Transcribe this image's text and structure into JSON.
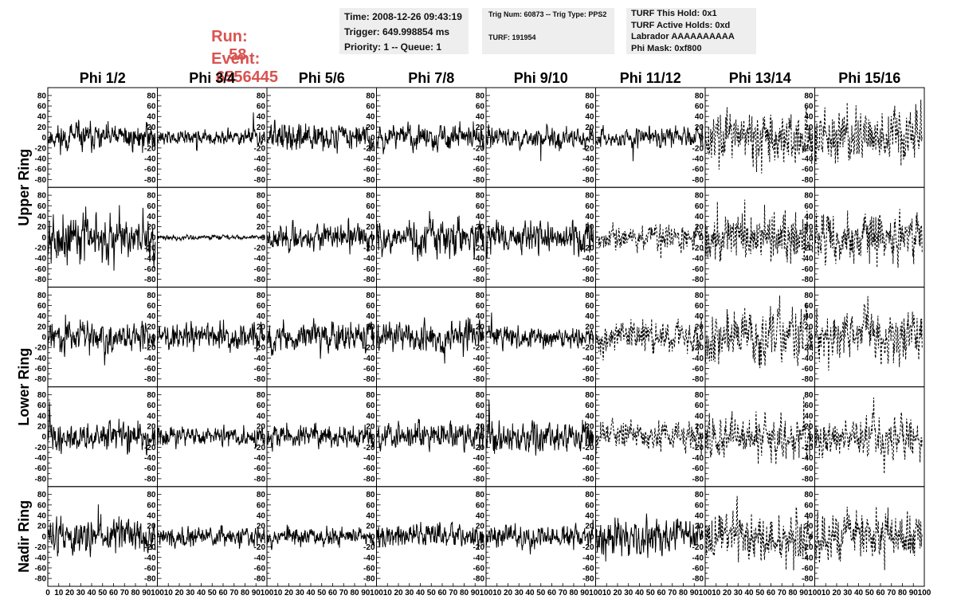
{
  "header": {
    "run_label": "Run:",
    "run_value": "58",
    "event_label": "Event:",
    "event_value": "6556445",
    "box1": [
      "Time: 2008-12-26 09:43:19",
      "Trigger: 649.998854 ms",
      "Priority: 1 -- Queue: 1"
    ],
    "box2": [
      "Trig Num: 60873 -- Trig Type: PPS2",
      "TURF: 191954"
    ],
    "box3": [
      "TURF This Hold: 0x1",
      "TURF Active Holds: 0xd",
      "Labrador AAAAAAAAAA",
      "Phi Mask: 0xf800"
    ]
  },
  "colors": {
    "header_red": "#d9534f",
    "box_bg": "#eeeeee",
    "trace": "#000000"
  },
  "chart_data": {
    "type": "line",
    "title": "",
    "columns": [
      "Phi 1/2",
      "Phi 3/4",
      "Phi 5/6",
      "Phi 7/8",
      "Phi 9/10",
      "Phi 11/12",
      "Phi 13/14",
      "Phi 15/16"
    ],
    "row_groups": [
      {
        "label": "Upper Ring",
        "rows": 2
      },
      {
        "label": "Lower Ring",
        "rows": 2
      },
      {
        "label": "Nadir Ring",
        "rows": 1
      }
    ],
    "xlim": [
      0,
      100
    ],
    "ylim": [
      -95,
      95
    ],
    "x_tick_labels": [
      "0",
      "10",
      "20",
      "30",
      "40",
      "50",
      "60",
      "70",
      "80",
      "90",
      "100"
    ],
    "y_tick_labels": [
      "80",
      "60",
      "40",
      "20",
      "0",
      "-20",
      "-40",
      "-60",
      "-80"
    ],
    "grid": false,
    "legend": "none",
    "traces": [
      [
        {
          "style": "solid",
          "amplitude": 17,
          "seed": 11
        },
        {
          "style": "solid",
          "amplitude": 10,
          "seed": 12
        },
        {
          "style": "solid",
          "amplitude": 17,
          "seed": 13
        },
        {
          "style": "solid",
          "amplitude": 15,
          "seed": 14
        },
        {
          "style": "solid",
          "amplitude": 13,
          "seed": 15
        },
        {
          "style": "solid",
          "amplitude": 12,
          "seed": 16
        },
        {
          "style": "dashed",
          "amplitude": 30,
          "seed": 17
        },
        {
          "style": "dashed",
          "amplitude": 33,
          "seed": 18
        }
      ],
      [
        {
          "style": "solid",
          "amplitude": 30,
          "seed": 21
        },
        {
          "style": "solid",
          "amplitude": 3,
          "seed": 22
        },
        {
          "style": "solid",
          "amplitude": 16,
          "seed": 23
        },
        {
          "style": "solid",
          "amplitude": 22,
          "seed": 24
        },
        {
          "style": "solid",
          "amplitude": 20,
          "seed": 25
        },
        {
          "style": "dashed",
          "amplitude": 16,
          "seed": 26
        },
        {
          "style": "dashed",
          "amplitude": 30,
          "seed": 27
        },
        {
          "style": "dashed",
          "amplitude": 30,
          "seed": 28
        }
      ],
      [
        {
          "style": "solid",
          "amplitude": 18,
          "seed": 31
        },
        {
          "style": "solid",
          "amplitude": 17,
          "seed": 32
        },
        {
          "style": "solid",
          "amplitude": 19,
          "seed": 33
        },
        {
          "style": "solid",
          "amplitude": 20,
          "seed": 34
        },
        {
          "style": "solid",
          "amplitude": 14,
          "seed": 35
        },
        {
          "style": "dashed",
          "amplitude": 20,
          "seed": 36
        },
        {
          "style": "dashed",
          "amplitude": 33,
          "seed": 37
        },
        {
          "style": "dashed",
          "amplitude": 30,
          "seed": 38
        }
      ],
      [
        {
          "style": "solid",
          "amplitude": 18,
          "seed": 41
        },
        {
          "style": "solid",
          "amplitude": 13,
          "seed": 42
        },
        {
          "style": "solid",
          "amplitude": 14,
          "seed": 43
        },
        {
          "style": "solid",
          "amplitude": 17,
          "seed": 44
        },
        {
          "style": "solid",
          "amplitude": 20,
          "seed": 45
        },
        {
          "style": "dashed",
          "amplitude": 17,
          "seed": 46
        },
        {
          "style": "dashed",
          "amplitude": 28,
          "seed": 47
        },
        {
          "style": "dashed",
          "amplitude": 26,
          "seed": 48
        }
      ],
      [
        {
          "style": "solid",
          "amplitude": 22,
          "seed": 51
        },
        {
          "style": "solid",
          "amplitude": 12,
          "seed": 52
        },
        {
          "style": "solid",
          "amplitude": 12,
          "seed": 53
        },
        {
          "style": "solid",
          "amplitude": 15,
          "seed": 54
        },
        {
          "style": "solid",
          "amplitude": 15,
          "seed": 55
        },
        {
          "style": "solid",
          "amplitude": 22,
          "seed": 56
        },
        {
          "style": "dashed",
          "amplitude": 30,
          "seed": 57
        },
        {
          "style": "dashed",
          "amplitude": 30,
          "seed": 58
        }
      ]
    ]
  }
}
